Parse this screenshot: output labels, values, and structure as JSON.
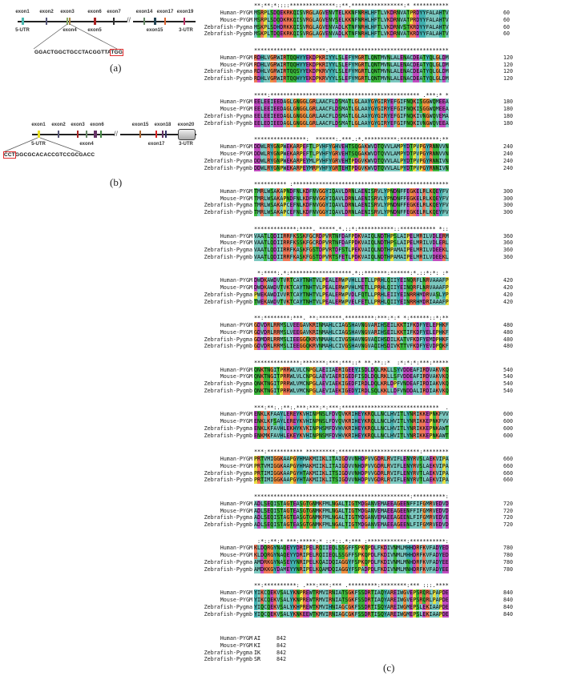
{
  "panel_a": {
    "exons_top": [
      "exon1",
      "exon2",
      "exon3",
      "exon6",
      "exon7",
      "exon14",
      "exon17",
      "exon19"
    ],
    "exons_bottom": [
      "5-UTR",
      "exon4",
      "exon5",
      "exon15",
      "3-UTR"
    ],
    "target_seq": "GGACTGGCTGCCTACGGTTA",
    "pam": "TGG",
    "caption": "(a)"
  },
  "panel_b": {
    "exons_top": [
      "exon1",
      "exon2",
      "exon3",
      "exon6",
      "exon15",
      "exon18",
      "exon20"
    ],
    "exons_bottom": [
      "5-UTR",
      "exon4",
      "exon17",
      "3-UTR"
    ],
    "pam": "CCT",
    "target_seq": "GGCGCACACCGTCCGCGACC",
    "caption": "(b)"
  },
  "panel_c": {
    "caption": "(c)",
    "block_ends": [
      60,
      120,
      180,
      240,
      300,
      360,
      420,
      480,
      540,
      600,
      660,
      720,
      780,
      840,
      842
    ],
    "colors": {
      "hydrophobic": "#7cc8c0",
      "polar": "#3cb83c",
      "positive": "#f07858",
      "negative": "#c04cc0",
      "glycine": "#f09040",
      "proline": "#e8e040",
      "aromatic": "#40b0b0"
    },
    "sequences": [
      {
        "name": "Human-PYGM",
        "blocks": [
          "MSRPLSDQEKRKQISVRGLAGVENVTELKKNFNRHLHFTLVKDRNVATPRDYYFALAHTV",
          "RDHLVGRWIRTQQHYYEKDPKRIYYLSLEFYMGRTLQNTMVNLALENACDEATYQLGLDM",
          "EELEEIEEDAGLGNGGLGRLAACFLDSMATLGLAAYGYGIRYEFGIFNQKISGGWQMEEA",
          "DDWLRYGNPWEKARPEFTLPVHFYGHVEHTSQGAKWVDTQVVLAMPYDTPVPGYRNNVVN",
          "TMRLWSAKAPNDFNLKDFNVGGYIQAVLDRNLAENISRVLYPNDNFFEGKELRLKQEYFV",
          "VAATLQDIIRRFKSSKFGCRDPVRTNFDAFPDKVAIQLNDTHPSLAIPELMRILVDLERM",
          "DWDKAWDVTVRTCAYTNHTVLPEALERWPVHLLETLLPRHLQIIYEINQRFLNRVAAAFP",
          "GDVDRLRRMSLVEEGAVKRINMAHLCIAGSHAVNGVARIHSEILKKTIFKDFYELEPHKF",
          "QNKTNGITPRRWLVLCNPGLAEIIAERIGEEYISDLDQLRKLLSYVDDEAFIRDVAKVKQ",
          "ENKLKFAAYLEREYKVHINPNSLFDVQVKRIHEYKRQLLNCLHVITLYNRIKKEPNKFVV",
          "PRTVMIGGKAAPGYHMAKMIIKLITAIGDVVNHDPVVGDRLRVIFLENYRVSLAEKVIPA",
          "ADLSEQISTAGTEASGTGNMKFMLNGALTIGTMDGANVEMAEEAGEENFFIFGMRVEDVD",
          "KLDQRGYNAQEYYDRIPELRQIIEQLSSGFFSPKQPDLFKDIVNMLMHHDRFKVFADYED",
          "YIKCQEKVSALYKNPREWTRMVIRNIATSGKFSSDRTIAQYAREIWGVEPSRQRLPAPDE",
          "AI"
        ]
      },
      {
        "name": "Mouse-PYGM",
        "blocks": [
          "MSRPLSDQDKRKQISVRGLAGVENVSELKKNFNRHLHFTLVKDRNVATPRDYYFALAHTV",
          "RDHLVGRWIRTQQHYYEKDPKRIYYLSLEFYMGRTLQNTMVNLALENACDEATYQLGLDM",
          "EELEEIEEDAGLGNGGLGRLAACFLDSMATLGLAAYGYGIRYEFGIFNQKISGGWQMEEA",
          "DDWLRYGNPWEKARPEFTLPVHFYGRVEHTSQGAKWVDTQVVLAMPYDTPVPGYRNNVVN",
          "TMRLWSAKAPNDFNLKDFNVGGYIQAVLDRNLAENISRVLYPNDNFFEGKELRLKQEYFV",
          "VAATLQDIIRRFKSSKFGCRDPVRTNFDAFPDKVAIQLNDTHPSLAIPELMRILVDLERL",
          "DWDKAWDVTVKTCAYTNHTVLPEALERWPVHLMETLLPRHLQIIYEINQRFLNRVAAAFP",
          "GDVDRLRRMSLVEEGAVKRINMAHLCIAGSHAVNGVARIHSEILKKTIFKDFYELEPHKF",
          "QNKTNGITPRRWLVLCNPGLAEVIAERIGEDFISDLDQLRKLLSFVDDEAFIRDVAKVKQ",
          "ENKLKFSAYLEREYKVHINPNSLFDVQVKRIHEYKRQLLNCLHVITLYNRIKKEPNKFVV",
          "PRTVMIGGKAAPGYHMAKMIIKLITAIGDVVNHDPVVGDRLRVIFLENYRVSLAEKVIPA",
          "ADLSEQISTAGTEASGTGNMKFMLNGALTIGTMDGANVEMAEEAGEENFFIFGMRVEDVD",
          "KLDQRGYNAQEYYDRIPELRQIIEQLSSGFFSPKQPDLFKDIVNMLMHHDRFKVFADYED",
          "YIKCQEKVSALYKNPREWTRMVIRNIATSGKFSSDRTIAQYAREIWGVEPSRQRLPAPDE",
          "KI"
        ]
      },
      {
        "name": "Zebrafish-Pygma",
        "blocks": [
          "MSKPLSDHDRKKQISVRGLAGVENVADLKTNFNRHLHFTLVKDRNVSTKRDYYFALAHTV",
          "RDHLVGRWIRTQQSYYEKDPKRVYYLSLEFYMGRTLQNTMVNLALENACDEATYQLGLDM",
          "EELEEIEEDAGLGNGGLGRLAACFLDSMATLGLAAYGYGIRYEFGIFNQKIVNGWQVEMA",
          "DDWLRYGNPWEKARPEYMLPVHFYGRVEHTPDGVKWVDTQVVLALPYDTPVPGYRNNIVN",
          "TMRLWSAKAPCEFNLKDFNVGGYIQAVLDRNLAENISRVLYPNDNFFEGKELRLKQEYFV",
          "VAATLQDIIRRFKASKFGSTDPVRTDFSTLPEKVAIQLNDTHPAMAIPELMRILVDEEKL",
          "PWEKAWDIVVRTCAYTNHTVLPEALERWPVDLFQTLLPRHLEIIYEINRRHMDRVASLYP",
          "GDMDRLRRMSLIEEGGQKRVNMAHLCIVGSHAVNGVAQIHSDILKATVFKDFYEMDPHKF",
          "QNKTNGITPRRWLVMCNPGLAEVIAEKIGEDFIRDLDQLKRLDPFVNDEAFIRDIAKVKQ",
          "ENKLKFAVHLEKHYKVKINPHSMFDVHVKRIHEYKRQLLNCLHVITLYNRIKKEPNKAWT",
          "PRTIMIGGKAAPGYHTAKMIIKLITSIGDVVNHDPVVGDRLRVIFLENYRVTLAEKVIPA",
          "ADLSEQISTAGTEASGTGNMKFMLNGALTIGTMDGANVEMAEEAGEENLFIFGMRVEDVE",
          "AMDRKGYNASEYYNRIPELKQAIDQIAGGYFSPKQPDLFKDIVNMLMNHDRFKVFADYEE",
          "YIQCQEKVSALYKHPREWTKMVIHNIAGCGKFSSDRTISQYAREIWGMEPSLEKIAAPDE",
          "IK"
        ]
      },
      {
        "name": "Zebrafish-Pygmb",
        "blocks": [
          "MSKPLTDQEKRKQISVRGLAGVENVADLKTNFNRHLHFTLVKDRNVATKRDYYFALAHTV",
          "RDHLVGRWIRTQQHYYEKDPKRVYYLSLEFYMGRTLQNTMVNLALENACDEATYQLGLDM",
          "EELEDIEEDAGLGNGGLGRLAACFLDSMATLGLAAYGYGIRYEFGIFNQKIVNGWQVEEA",
          "DDWLRYGNPWEKARPEYMRPVHFYGRTEHTPDGVKWVDTQVVLALPYDTPVPGYRNNIVN",
          "TMRLWSAKAPCEFNLKDFNVGGYIQAVLDRNLAENISRVLYPNDNFFEGKELRLKQEYFV",
          "VAATLQDIIRRFKASKFGSTDPVRTSFETLPDKVAIQLNDTHPAMAIPELMRILVDEEKL",
          "TWEKAWDVTVKTCAYTNHTVLPEALERWPVELFETLLPRHLQIIYEINRRHMDRIAAAFP",
          "GDVDRLRRMSLIEEGGQKRVNMAHLCIVGSHAVNGVAQIHSDIVKTTVFKDFYEVDPQKF",
          "QNKTNGITPRRWLVMCNPGLAEVIAEKIGEDYIRDLSQLKKLLDFVNDDALIRDIAKVKQ",
          "ENKMKFAVHLEKEYKVHINPNSMFDVHVKRIHEYKRQLLNCLHVITLYNRIKKEPNKAWT",
          "PRTIMIGGKAAPGYHTAKMIIKLITSIGDVVNHDPVVGDRLRVIFLENYRVTLAEKVIPA",
          "ADLSEQISTAGTEASGTGNMKFMLNGALTIGTMDGANVEMAEEAGEENLFIFGMRVEDVD",
          "AMDKKGYDAMEYYNRIPELKQAMDQIAGGYFSPADPDLFKDIVNMLMNHDRFKVFADYEE",
          "YIQCQEKVSALYKNKEEWTKMVIRNIAGCGKFSSDRTISQYAREIWGMEPSLEKIAAPDE",
          "SR"
        ]
      }
    ]
  }
}
